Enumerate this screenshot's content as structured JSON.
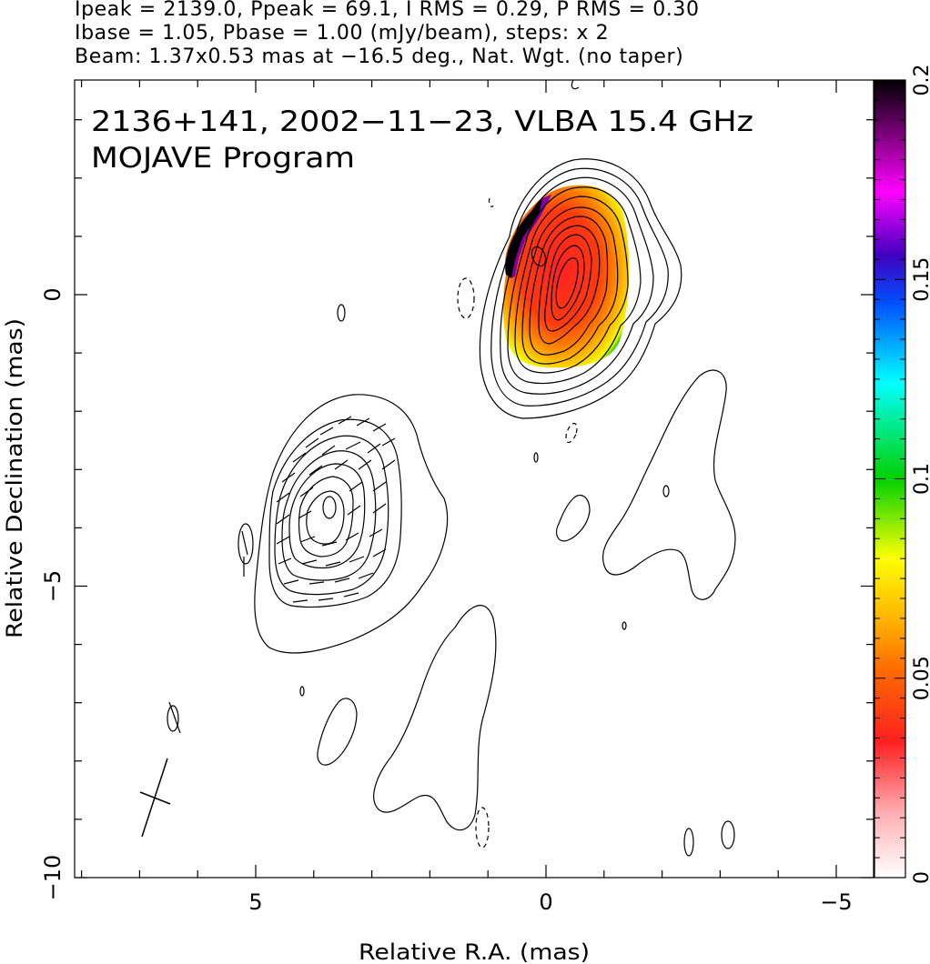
{
  "header": {
    "line1": "Ipeak = 2139.0, Ppeak = 69.1, I RMS = 0.29, P RMS = 0.30",
    "line2": "Ibase = 1.05, Pbase = 1.00 (mJy/beam), steps: x 2",
    "line3": "Beam: 1.37x0.53 mas at −16.5 deg., Nat. Wgt. (no taper)"
  },
  "chart_data": {
    "type": "heatmap",
    "title_line1": "2136+141, 2002−11−23, VLBA 15.4 GHz",
    "title_line2": "MOJAVE Program",
    "xlabel": "Relative R.A. (mas)",
    "ylabel": "Relative Declination (mas)",
    "xlim": [
      8.0,
      -5.3
    ],
    "ylim": [
      -10.0,
      3.7
    ],
    "x_ticks": [
      5,
      0,
      -5
    ],
    "x_tick_labels": [
      "5",
      "0",
      "−5"
    ],
    "y_ticks": [
      0,
      -5,
      -10
    ],
    "y_tick_labels": [
      "0",
      "−5",
      "−10"
    ],
    "colorbar": {
      "range": [
        0,
        0.2
      ],
      "ticks": [
        0,
        0.05,
        0.1,
        0.15,
        0.2
      ],
      "tick_labels": [
        "0",
        "0.05",
        "0.1",
        "0.15",
        "0.2"
      ],
      "colors": [
        "#ffffff",
        "#ffb0b4",
        "#ff2020",
        "#ff6a00",
        "#ffb000",
        "#ffff00",
        "#00d000",
        "#00ffff",
        "#0050ff",
        "#4000c0",
        "#ff00ff",
        "#800080",
        "#000000"
      ]
    },
    "features": [
      {
        "kind": "core_fractional_polarization",
        "center": [
          -0.3,
          0.1
        ],
        "value_range": [
          0.02,
          0.2
        ]
      },
      {
        "kind": "contour_component",
        "center": [
          3.7,
          -3.7
        ],
        "with_evpa_ticks": true
      },
      {
        "kind": "contour_component",
        "center": [
          0.05,
          0.05
        ],
        "levels": 12
      }
    ],
    "beam": {
      "major_mas": 1.37,
      "minor_mas": 0.53,
      "pa_deg": -16.5,
      "center": [
        6.6,
        -8.6
      ]
    }
  }
}
